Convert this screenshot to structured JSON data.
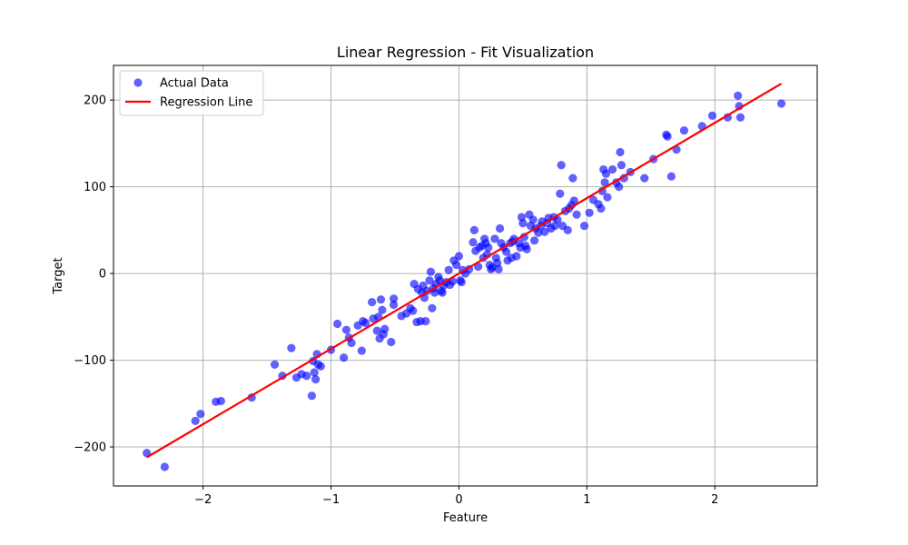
{
  "chart_data": {
    "type": "scatter",
    "title": "Linear Regression - Fit Visualization",
    "xlabel": "Feature",
    "ylabel": "Target",
    "xlim": [
      -2.7,
      2.8
    ],
    "ylim": [
      -245,
      240
    ],
    "xticks": [
      -2,
      -1,
      0,
      1,
      2
    ],
    "yticks": [
      -200,
      -100,
      0,
      100,
      200
    ],
    "xtick_labels": [
      "−2",
      "−1",
      "0",
      "1",
      "2"
    ],
    "ytick_labels": [
      "−200",
      "−100",
      "0",
      "100",
      "200"
    ],
    "grid": true,
    "legend": "upper-left",
    "series": [
      {
        "name": "Actual Data",
        "kind": "scatter",
        "color": "#0000ff",
        "points": [
          [
            -2.44,
            -207
          ],
          [
            -2.3,
            -223
          ],
          [
            -2.06,
            -170
          ],
          [
            -2.02,
            -162
          ],
          [
            -1.9,
            -148
          ],
          [
            -1.86,
            -147
          ],
          [
            -1.62,
            -143
          ],
          [
            -1.44,
            -105
          ],
          [
            -1.38,
            -118
          ],
          [
            -1.31,
            -86
          ],
          [
            -1.27,
            -120
          ],
          [
            -1.23,
            -116
          ],
          [
            -1.19,
            -118
          ],
          [
            -1.15,
            -141
          ],
          [
            -1.14,
            -101
          ],
          [
            -1.13,
            -114
          ],
          [
            -1.12,
            -122
          ],
          [
            -1.11,
            -93
          ],
          [
            -1.1,
            -105
          ],
          [
            -1.08,
            -107
          ],
          [
            -1.0,
            -88
          ],
          [
            -0.95,
            -58
          ],
          [
            -0.9,
            -97
          ],
          [
            -0.88,
            -65
          ],
          [
            -0.86,
            -74
          ],
          [
            -0.84,
            -80
          ],
          [
            -0.79,
            -60
          ],
          [
            -0.76,
            -89
          ],
          [
            -0.75,
            -55
          ],
          [
            -0.73,
            -57
          ],
          [
            -0.68,
            -33
          ],
          [
            -0.67,
            -52
          ],
          [
            -0.64,
            -66
          ],
          [
            -0.63,
            -50
          ],
          [
            -0.62,
            -75
          ],
          [
            -0.61,
            -30
          ],
          [
            -0.6,
            -42
          ],
          [
            -0.59,
            -70
          ],
          [
            -0.58,
            -64
          ],
          [
            -0.53,
            -79
          ],
          [
            -0.51,
            -29
          ],
          [
            -0.51,
            -36
          ],
          [
            -0.45,
            -49
          ],
          [
            -0.41,
            -46
          ],
          [
            -0.38,
            -40
          ],
          [
            -0.36,
            -43
          ],
          [
            -0.35,
            -12
          ],
          [
            -0.33,
            -56
          ],
          [
            -0.32,
            -18
          ],
          [
            -0.3,
            -55
          ],
          [
            -0.29,
            -22
          ],
          [
            -0.28,
            -14
          ],
          [
            -0.27,
            -28
          ],
          [
            -0.26,
            -55
          ],
          [
            -0.25,
            -20
          ],
          [
            -0.23,
            -8
          ],
          [
            -0.22,
            2
          ],
          [
            -0.21,
            -40
          ],
          [
            -0.2,
            -17
          ],
          [
            -0.19,
            -22
          ],
          [
            -0.18,
            -12
          ],
          [
            -0.16,
            -4
          ],
          [
            -0.15,
            -8
          ],
          [
            -0.14,
            -20
          ],
          [
            -0.13,
            -22
          ],
          [
            -0.12,
            -14
          ],
          [
            -0.1,
            -10
          ],
          [
            -0.08,
            4
          ],
          [
            -0.07,
            -13
          ],
          [
            -0.05,
            -9
          ],
          [
            -0.04,
            15
          ],
          [
            -0.02,
            10
          ],
          [
            0.0,
            20
          ],
          [
            0.01,
            -8
          ],
          [
            0.02,
            -10
          ],
          [
            0.03,
            4
          ],
          [
            0.05,
            0
          ],
          [
            0.08,
            5
          ],
          [
            0.11,
            36
          ],
          [
            0.12,
            50
          ],
          [
            0.13,
            26
          ],
          [
            0.15,
            8
          ],
          [
            0.16,
            30
          ],
          [
            0.18,
            32
          ],
          [
            0.19,
            18
          ],
          [
            0.2,
            40
          ],
          [
            0.21,
            35
          ],
          [
            0.22,
            22
          ],
          [
            0.23,
            30
          ],
          [
            0.24,
            10
          ],
          [
            0.25,
            5
          ],
          [
            0.26,
            7
          ],
          [
            0.28,
            40
          ],
          [
            0.29,
            18
          ],
          [
            0.3,
            12
          ],
          [
            0.31,
            5
          ],
          [
            0.32,
            52
          ],
          [
            0.33,
            35
          ],
          [
            0.35,
            30
          ],
          [
            0.37,
            25
          ],
          [
            0.38,
            15
          ],
          [
            0.4,
            35
          ],
          [
            0.41,
            18
          ],
          [
            0.42,
            37
          ],
          [
            0.43,
            40
          ],
          [
            0.45,
            20
          ],
          [
            0.47,
            35
          ],
          [
            0.48,
            30
          ],
          [
            0.49,
            65
          ],
          [
            0.5,
            58
          ],
          [
            0.51,
            42
          ],
          [
            0.52,
            32
          ],
          [
            0.53,
            28
          ],
          [
            0.55,
            68
          ],
          [
            0.56,
            55
          ],
          [
            0.58,
            62
          ],
          [
            0.59,
            38
          ],
          [
            0.6,
            52
          ],
          [
            0.62,
            47
          ],
          [
            0.64,
            55
          ],
          [
            0.65,
            60
          ],
          [
            0.67,
            48
          ],
          [
            0.69,
            58
          ],
          [
            0.7,
            64
          ],
          [
            0.72,
            52
          ],
          [
            0.74,
            65
          ],
          [
            0.75,
            55
          ],
          [
            0.77,
            62
          ],
          [
            0.79,
            92
          ],
          [
            0.8,
            125
          ],
          [
            0.81,
            55
          ],
          [
            0.83,
            72
          ],
          [
            0.85,
            50
          ],
          [
            0.86,
            75
          ],
          [
            0.88,
            79
          ],
          [
            0.89,
            110
          ],
          [
            0.9,
            84
          ],
          [
            0.92,
            68
          ],
          [
            0.98,
            55
          ],
          [
            1.02,
            70
          ],
          [
            1.05,
            85
          ],
          [
            1.09,
            80
          ],
          [
            1.11,
            75
          ],
          [
            1.12,
            95
          ],
          [
            1.13,
            120
          ],
          [
            1.14,
            105
          ],
          [
            1.15,
            115
          ],
          [
            1.16,
            88
          ],
          [
            1.2,
            120
          ],
          [
            1.23,
            105
          ],
          [
            1.25,
            100
          ],
          [
            1.26,
            140
          ],
          [
            1.27,
            125
          ],
          [
            1.29,
            110
          ],
          [
            1.34,
            117
          ],
          [
            1.45,
            110
          ],
          [
            1.52,
            132
          ],
          [
            1.62,
            160
          ],
          [
            1.63,
            158
          ],
          [
            1.66,
            112
          ],
          [
            1.7,
            143
          ],
          [
            1.76,
            165
          ],
          [
            1.9,
            170
          ],
          [
            1.98,
            182
          ],
          [
            2.1,
            180
          ],
          [
            2.18,
            205
          ],
          [
            2.19,
            193
          ],
          [
            2.2,
            180
          ],
          [
            2.52,
            196
          ]
        ]
      },
      {
        "name": "Regression Line",
        "kind": "line",
        "color": "#ff0000",
        "points": [
          [
            -2.44,
            -212
          ],
          [
            2.52,
            219
          ]
        ]
      }
    ]
  }
}
